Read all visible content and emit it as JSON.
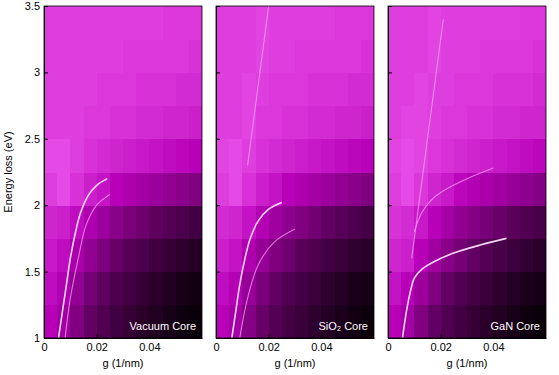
{
  "chart_data": [
    {
      "type": "heatmap",
      "xlabel": "g (1/nm)",
      "ylabel": "Energy loss (eV)",
      "annotations": [
        "Vacuum Core"
      ],
      "xlim": [
        0,
        0.06
      ],
      "ylim": [
        1,
        3.5
      ],
      "xticks": [
        0,
        0.02,
        0.04
      ],
      "yticks": [
        1,
        1.5,
        2,
        2.5,
        3,
        3.5
      ],
      "zlim": [
        0,
        1
      ],
      "xbins": [
        0,
        0.005,
        0.01,
        0.015,
        0.02,
        0.025,
        0.03,
        0.035,
        0.04,
        0.045,
        0.05,
        0.055,
        0.06
      ],
      "ybins": [
        1,
        1.25,
        1.5,
        1.75,
        2,
        2.25,
        2.5,
        2.75,
        3,
        3.25,
        3.5
      ],
      "cells": [
        [
          0.5,
          0.45,
          0.38,
          0.32,
          0.27,
          0.22,
          0.18,
          0.14,
          0.11,
          0.08,
          0.05,
          0.03
        ],
        [
          0.52,
          0.48,
          0.42,
          0.36,
          0.31,
          0.26,
          0.22,
          0.18,
          0.14,
          0.11,
          0.08,
          0.06
        ],
        [
          0.54,
          0.52,
          0.47,
          0.42,
          0.37,
          0.33,
          0.29,
          0.25,
          0.21,
          0.18,
          0.15,
          0.12
        ],
        [
          0.56,
          0.55,
          0.52,
          0.48,
          0.44,
          0.4,
          0.37,
          0.34,
          0.31,
          0.28,
          0.25,
          0.22
        ],
        [
          0.6,
          0.62,
          0.58,
          0.55,
          0.53,
          0.5,
          0.48,
          0.46,
          0.44,
          0.42,
          0.4,
          0.38
        ],
        [
          0.62,
          0.62,
          0.6,
          0.58,
          0.57,
          0.56,
          0.55,
          0.54,
          0.53,
          0.52,
          0.51,
          0.5
        ],
        [
          0.6,
          0.6,
          0.6,
          0.59,
          0.59,
          0.58,
          0.58,
          0.57,
          0.57,
          0.56,
          0.56,
          0.55
        ],
        [
          0.6,
          0.6,
          0.6,
          0.6,
          0.59,
          0.59,
          0.59,
          0.58,
          0.58,
          0.58,
          0.57,
          0.57
        ],
        [
          0.6,
          0.6,
          0.6,
          0.6,
          0.6,
          0.6,
          0.59,
          0.59,
          0.59,
          0.59,
          0.59,
          0.58
        ],
        [
          0.6,
          0.6,
          0.6,
          0.6,
          0.6,
          0.6,
          0.6,
          0.6,
          0.6,
          0.59,
          0.59,
          0.59
        ]
      ],
      "series": [
        {
          "type": "line",
          "color": "#ffe0ff",
          "x": [
            0.0055,
            0.007,
            0.0085,
            0.01,
            0.012,
            0.014,
            0.017,
            0.02,
            0.024
          ],
          "values": [
            1.0,
            1.2,
            1.4,
            1.6,
            1.8,
            1.95,
            2.08,
            2.15,
            2.2
          ]
        },
        {
          "type": "line",
          "color": "#f4a0f4",
          "x": [
            0.008,
            0.01,
            0.013,
            0.016,
            0.02,
            0.025
          ],
          "values": [
            1.0,
            1.3,
            1.6,
            1.85,
            2.0,
            2.08
          ]
        }
      ]
    },
    {
      "type": "heatmap",
      "xlabel": "g (1/nm)",
      "annotations": [
        "SiO₂ Core"
      ],
      "tick_labels": "x",
      "xlim": [
        0,
        0.06
      ],
      "ylim": [
        1,
        3.5
      ],
      "xticks": [
        0,
        0.02,
        0.04
      ],
      "yticks": [
        1,
        1.5,
        2,
        2.5,
        3,
        3.5
      ],
      "zlim": [
        0,
        1
      ],
      "xbins": [
        0,
        0.005,
        0.01,
        0.015,
        0.02,
        0.025,
        0.03,
        0.035,
        0.04,
        0.045,
        0.05,
        0.055,
        0.06
      ],
      "ybins": [
        1,
        1.25,
        1.5,
        1.75,
        2,
        2.25,
        2.5,
        2.75,
        3,
        3.25,
        3.5
      ],
      "cells": [
        [
          0.5,
          0.46,
          0.39,
          0.33,
          0.28,
          0.23,
          0.19,
          0.15,
          0.12,
          0.09,
          0.06,
          0.04
        ],
        [
          0.52,
          0.49,
          0.43,
          0.37,
          0.32,
          0.27,
          0.23,
          0.19,
          0.15,
          0.12,
          0.09,
          0.07
        ],
        [
          0.55,
          0.53,
          0.48,
          0.43,
          0.38,
          0.34,
          0.3,
          0.26,
          0.22,
          0.19,
          0.16,
          0.13
        ],
        [
          0.57,
          0.56,
          0.53,
          0.49,
          0.45,
          0.41,
          0.38,
          0.35,
          0.32,
          0.29,
          0.26,
          0.23
        ],
        [
          0.6,
          0.62,
          0.58,
          0.55,
          0.53,
          0.5,
          0.48,
          0.46,
          0.44,
          0.42,
          0.4,
          0.38
        ],
        [
          0.61,
          0.62,
          0.6,
          0.58,
          0.57,
          0.56,
          0.55,
          0.54,
          0.53,
          0.52,
          0.51,
          0.5
        ],
        [
          0.6,
          0.6,
          0.61,
          0.59,
          0.59,
          0.58,
          0.58,
          0.57,
          0.57,
          0.56,
          0.56,
          0.55
        ],
        [
          0.6,
          0.6,
          0.61,
          0.6,
          0.59,
          0.59,
          0.59,
          0.58,
          0.58,
          0.58,
          0.57,
          0.57
        ],
        [
          0.6,
          0.6,
          0.6,
          0.61,
          0.6,
          0.6,
          0.59,
          0.59,
          0.59,
          0.59,
          0.59,
          0.58
        ],
        [
          0.6,
          0.6,
          0.6,
          0.61,
          0.6,
          0.6,
          0.6,
          0.6,
          0.6,
          0.59,
          0.59,
          0.59
        ]
      ],
      "series": [
        {
          "type": "line",
          "color": "#ffe0ff",
          "x": [
            0.006,
            0.0075,
            0.009,
            0.011,
            0.013,
            0.016,
            0.02,
            0.025
          ],
          "values": [
            1.0,
            1.2,
            1.4,
            1.6,
            1.75,
            1.88,
            1.97,
            2.02
          ]
        },
        {
          "type": "line",
          "color": "#f4a0f4",
          "x": [
            0.009,
            0.012,
            0.016,
            0.022,
            0.03
          ],
          "values": [
            1.0,
            1.3,
            1.55,
            1.72,
            1.82
          ]
        },
        {
          "type": "line",
          "color": "#f4a0f4",
          "x": [
            0.012,
            0.014,
            0.016,
            0.018,
            0.02
          ],
          "values": [
            2.3,
            2.6,
            2.9,
            3.2,
            3.5
          ]
        }
      ]
    },
    {
      "type": "heatmap",
      "xlabel": "g (1/nm)",
      "annotations": [
        "GaN Core"
      ],
      "tick_labels": "x",
      "xlim": [
        0,
        0.06
      ],
      "ylim": [
        1,
        3.5
      ],
      "xticks": [
        0,
        0.02,
        0.04
      ],
      "yticks": [
        1,
        1.5,
        2,
        2.5,
        3,
        3.5
      ],
      "zlim": [
        0,
        1
      ],
      "xbins": [
        0,
        0.005,
        0.01,
        0.015,
        0.02,
        0.025,
        0.03,
        0.035,
        0.04,
        0.045,
        0.05,
        0.055,
        0.06
      ],
      "ybins": [
        1,
        1.25,
        1.5,
        1.75,
        2,
        2.25,
        2.5,
        2.75,
        3,
        3.25,
        3.5
      ],
      "cells": [
        [
          0.5,
          0.46,
          0.38,
          0.32,
          0.27,
          0.22,
          0.18,
          0.14,
          0.11,
          0.08,
          0.05,
          0.03
        ],
        [
          0.53,
          0.5,
          0.44,
          0.38,
          0.32,
          0.27,
          0.23,
          0.19,
          0.15,
          0.12,
          0.09,
          0.07
        ],
        [
          0.56,
          0.55,
          0.5,
          0.45,
          0.4,
          0.36,
          0.32,
          0.28,
          0.24,
          0.2,
          0.17,
          0.14
        ],
        [
          0.58,
          0.57,
          0.54,
          0.5,
          0.46,
          0.42,
          0.39,
          0.36,
          0.33,
          0.3,
          0.27,
          0.24
        ],
        [
          0.6,
          0.62,
          0.59,
          0.56,
          0.54,
          0.51,
          0.49,
          0.47,
          0.45,
          0.43,
          0.41,
          0.39
        ],
        [
          0.61,
          0.62,
          0.61,
          0.59,
          0.58,
          0.57,
          0.56,
          0.55,
          0.54,
          0.53,
          0.52,
          0.51
        ],
        [
          0.6,
          0.61,
          0.61,
          0.6,
          0.59,
          0.59,
          0.58,
          0.58,
          0.57,
          0.57,
          0.56,
          0.56
        ],
        [
          0.6,
          0.6,
          0.61,
          0.6,
          0.6,
          0.59,
          0.59,
          0.59,
          0.58,
          0.58,
          0.58,
          0.57
        ],
        [
          0.6,
          0.6,
          0.6,
          0.61,
          0.6,
          0.6,
          0.6,
          0.59,
          0.59,
          0.59,
          0.59,
          0.58
        ],
        [
          0.6,
          0.6,
          0.6,
          0.61,
          0.6,
          0.6,
          0.6,
          0.6,
          0.6,
          0.6,
          0.59,
          0.59
        ]
      ],
      "series": [
        {
          "type": "line",
          "color": "#ffe0ff",
          "x": [
            0.0055,
            0.007,
            0.0085,
            0.01,
            0.013,
            0.018,
            0.025,
            0.035,
            0.045
          ],
          "values": [
            1.0,
            1.2,
            1.35,
            1.45,
            1.52,
            1.58,
            1.64,
            1.7,
            1.75
          ]
        },
        {
          "type": "line",
          "color": "#f4a0f4",
          "x": [
            0.009,
            0.011,
            0.013,
            0.015,
            0.017,
            0.019,
            0.021
          ],
          "values": [
            1.6,
            1.9,
            2.2,
            2.5,
            2.8,
            3.1,
            3.4
          ]
        },
        {
          "type": "line",
          "color": "#f4a0f4",
          "x": [
            0.01,
            0.013,
            0.017,
            0.022,
            0.03,
            0.04
          ],
          "values": [
            1.8,
            1.95,
            2.05,
            2.12,
            2.2,
            2.28
          ]
        }
      ]
    }
  ]
}
